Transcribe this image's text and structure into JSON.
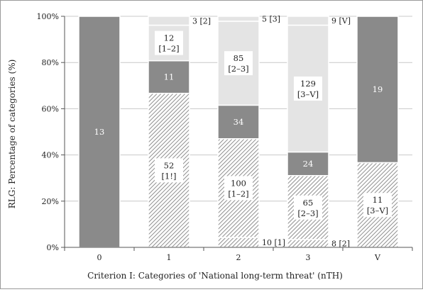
{
  "chart_data": {
    "type": "bar",
    "stacked": "percent",
    "ylabel": "RLG: Percentage of categories (%)",
    "xlabel": "Criterion I: Categories of 'National long-term threat' (nTH)",
    "y_ticks": [
      "0%",
      "20%",
      "40%",
      "60%",
      "80%",
      "100%"
    ],
    "ylim": [
      0,
      100
    ],
    "categories": [
      "0",
      "1",
      "2",
      "3",
      "V"
    ],
    "colors": {
      "solid": "#8a8a8a",
      "light": "#e4e4e4",
      "hatch": "#bdbdbd"
    },
    "bars": [
      {
        "category": "0",
        "segments": [
          {
            "style": "solid",
            "count": 13,
            "label": "13",
            "bracket": ""
          }
        ]
      },
      {
        "category": "1",
        "segments": [
          {
            "style": "hatch",
            "count": 52,
            "label": "52",
            "bracket": "[1!]"
          },
          {
            "style": "solid",
            "count": 11,
            "label": "11",
            "bracket": ""
          },
          {
            "style": "light",
            "count": 12,
            "label": "12",
            "bracket": "[1–2]"
          },
          {
            "style": "light",
            "count": 3,
            "label": "3 [2]",
            "bracket": "",
            "outside": true
          }
        ]
      },
      {
        "category": "2",
        "segments": [
          {
            "style": "hatch",
            "count": 10,
            "label": "10 [1]",
            "bracket": "",
            "outside": true
          },
          {
            "style": "hatch",
            "count": 100,
            "label": "100",
            "bracket": "[1–2]"
          },
          {
            "style": "solid",
            "count": 34,
            "label": "34",
            "bracket": ""
          },
          {
            "style": "light",
            "count": 85,
            "label": "85",
            "bracket": "[2–3]"
          },
          {
            "style": "light",
            "count": 5,
            "label": "5 [3]",
            "bracket": "",
            "outside": true
          }
        ]
      },
      {
        "category": "3",
        "segments": [
          {
            "style": "hatch",
            "count": 8,
            "label": "8 [2]",
            "bracket": "",
            "outside": true
          },
          {
            "style": "hatch",
            "count": 65,
            "label": "65",
            "bracket": "[2–3]"
          },
          {
            "style": "solid",
            "count": 24,
            "label": "24",
            "bracket": ""
          },
          {
            "style": "light",
            "count": 129,
            "label": "129",
            "bracket": "[3–V]"
          },
          {
            "style": "light",
            "count": 9,
            "label": "9 [V]",
            "bracket": "",
            "outside": true
          }
        ]
      },
      {
        "category": "V",
        "segments": [
          {
            "style": "hatch",
            "count": 11,
            "label": "11",
            "bracket": "[3–V]"
          },
          {
            "style": "solid",
            "count": 19,
            "label": "19",
            "bracket": ""
          }
        ]
      }
    ]
  }
}
